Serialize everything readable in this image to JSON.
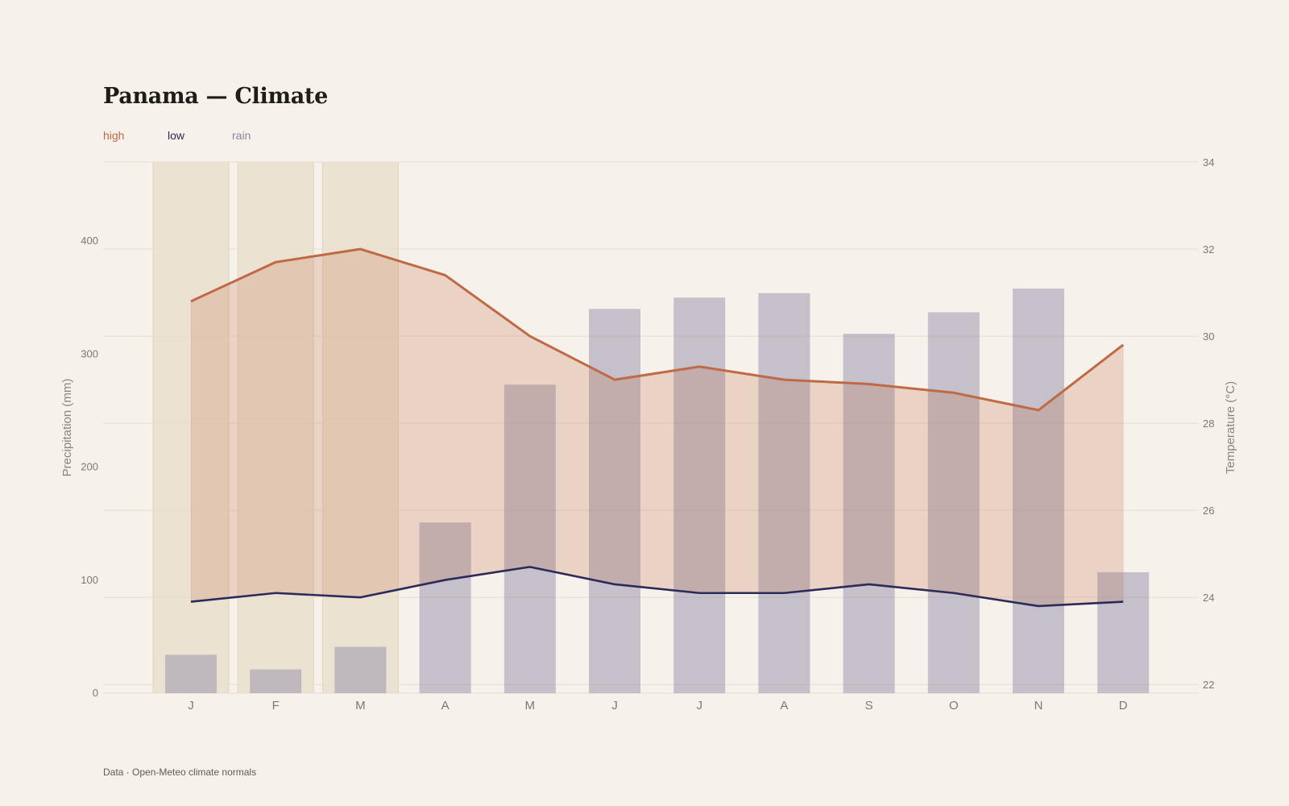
{
  "title": "Panama — Climate",
  "legend": {
    "high": "high",
    "low": "low",
    "rain": "rain"
  },
  "footer": "Data · Open-Meteo climate normals",
  "colors": {
    "background": "#f6f1ea",
    "high": "#bf6a45",
    "low": "#2c2a5b",
    "rain": "#8a86a3",
    "band": "#d9c6a6",
    "grid": "#e6ddd2"
  },
  "chart_data": {
    "type": "bar+line",
    "categories": [
      "J",
      "F",
      "M",
      "A",
      "M",
      "J",
      "J",
      "A",
      "S",
      "O",
      "N",
      "D"
    ],
    "series": [
      {
        "name": "rain",
        "type": "bar",
        "axis": "left",
        "values": [
          34,
          21,
          41,
          151,
          273,
          340,
          350,
          354,
          318,
          337,
          358,
          107
        ]
      },
      {
        "name": "high",
        "type": "line",
        "axis": "right",
        "values": [
          30.8,
          31.7,
          32.0,
          31.4,
          30.0,
          29.0,
          29.3,
          29.0,
          28.9,
          28.7,
          28.3,
          29.8
        ]
      },
      {
        "name": "low",
        "type": "line",
        "axis": "right",
        "values": [
          23.9,
          24.1,
          24.0,
          24.4,
          24.7,
          24.3,
          24.1,
          24.1,
          24.3,
          24.1,
          23.8,
          23.9
        ]
      }
    ],
    "highlight_months": [
      "J",
      "F",
      "M"
    ],
    "y_left": {
      "label": "Precipitation (mm)",
      "ticks": [
        0,
        100,
        200,
        300,
        400
      ],
      "range": [
        0,
        470
      ]
    },
    "y_right": {
      "label": "Temperature (°C)",
      "ticks": [
        22,
        24,
        26,
        28,
        30,
        32,
        34
      ],
      "range": [
        21.8,
        34
      ]
    },
    "grid": true,
    "legend_position": "top-left"
  }
}
